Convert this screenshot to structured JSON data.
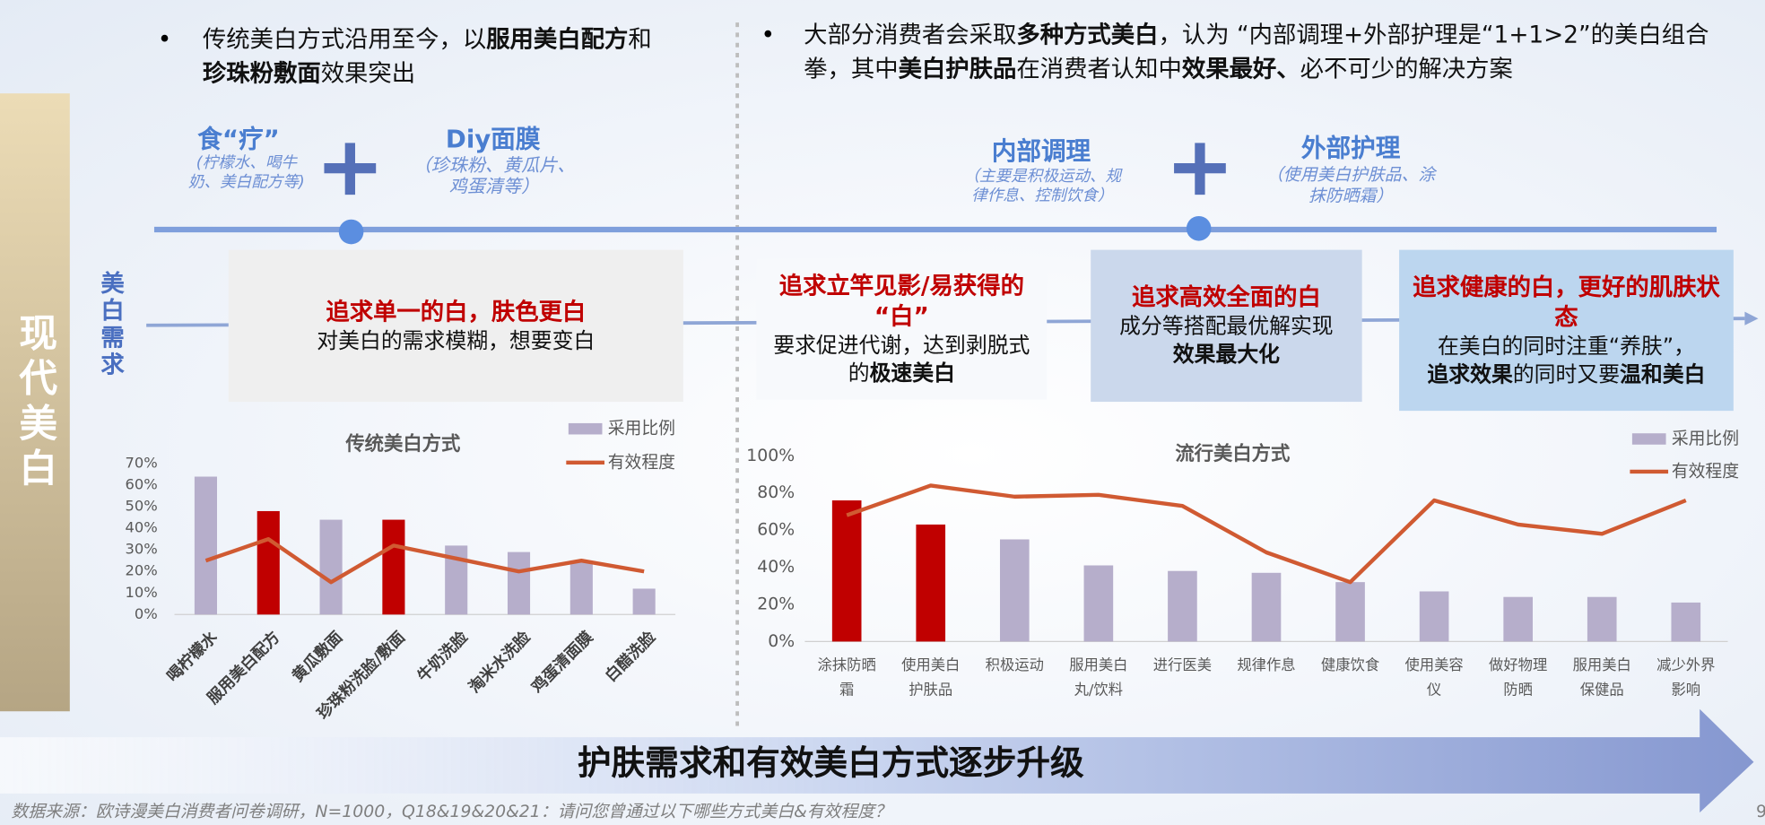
{
  "sidebar": "现代美白",
  "left_bullet": [
    "传统美白方式沿用至今，以",
    "服用美白配方",
    "和",
    "珍珠粉敷面",
    "效果突出"
  ],
  "right_bullet": [
    "大部分消费者会采取",
    "多种方式美白",
    "，认为 “内部调理+外部护理是“1+1>2”的美白组合拳，其中",
    "美白护肤品",
    "在消费者认知中",
    "效果最好、",
    "必不可少的解决方案"
  ],
  "timeline": [
    {
      "title": "食“疗”",
      "note": "(柠檬水、喝牛奶、美白配方等)"
    },
    {
      "title": "Diy面膜",
      "note": "（珍珠粉、黄瓜片、鸡蛋清等）"
    },
    {
      "title": "内部调理",
      "note": "（主要是积极运动、规律作息、控制饮食）"
    },
    {
      "title": "外部护理",
      "note": "（使用美白护肤品、涂抹防晒霜）"
    }
  ],
  "demand_label": "美白需求",
  "demands": [
    {
      "title": "追求单一的白，肤色更白",
      "body": [
        "对美白的需求模糊，想要变白"
      ]
    },
    {
      "title": "追求立竿见影/易获得的“白”",
      "body": [
        "要求促进代谢，达到剥脱式的",
        "极速美白"
      ]
    },
    {
      "title": "追求高效全面的白",
      "body": [
        "成分等搭配最优解实现",
        "效果最大化"
      ]
    },
    {
      "title": "追求健康的白，更好的肌肤状态",
      "body": [
        "在美白的同时注重“养肤”，",
        "追求效果",
        "的同时又要",
        "温和美白"
      ]
    }
  ],
  "chart_data": [
    {
      "type": "combo",
      "title": "传统美白方式",
      "categories": [
        "喝柠檬水",
        "服用美白配方",
        "黄瓜敷面",
        "珍珠粉洗脸/敷面",
        "牛奶洗脸",
        "淘米水洗脸",
        "鸡蛋清面膜",
        "白醋洗脸"
      ],
      "series": [
        {
          "name": "采用比例",
          "type": "bar",
          "color": "#b6aecb",
          "point_colors": [
            "#b6aecb",
            "#c00000",
            "#b6aecb",
            "#c00000",
            "#b6aecb",
            "#b6aecb",
            "#b6aecb",
            "#b6aecb"
          ],
          "values": [
            64,
            48,
            44,
            44,
            32,
            29,
            25,
            12
          ]
        },
        {
          "name": "有效程度",
          "type": "line",
          "color": "#d05a32",
          "values": [
            25,
            35,
            15,
            32,
            26,
            20,
            25,
            20
          ]
        }
      ],
      "ylim": [
        0,
        70
      ],
      "yticks": [
        {
          "value": 0,
          "label": "0%"
        },
        {
          "value": 10,
          "label": "10%"
        },
        {
          "value": 20,
          "label": "20%"
        },
        {
          "value": 30,
          "label": "30%"
        },
        {
          "value": 40,
          "label": "40%"
        },
        {
          "value": 50,
          "label": "50%"
        },
        {
          "value": 60,
          "label": "60%"
        },
        {
          "value": 70,
          "label": "70%"
        }
      ],
      "grid": false
    },
    {
      "type": "combo",
      "title": "流行美白方式",
      "categories": [
        "涂抹防晒霜",
        "使用美白护肤品",
        "积极运动",
        "服用美白丸/饮料",
        "进行医美",
        "规律作息",
        "健康饮食",
        "使用美容仪",
        "做好物理防晒",
        "服用美白保健品",
        "减少外界影响"
      ],
      "series": [
        {
          "name": "采用比例",
          "type": "bar",
          "color": "#b6aecb",
          "point_colors": [
            "#c00000",
            "#c00000",
            "#b6aecb",
            "#b6aecb",
            "#b6aecb",
            "#b6aecb",
            "#b6aecb",
            "#b6aecb",
            "#b6aecb",
            "#b6aecb",
            "#b6aecb"
          ],
          "values": [
            76,
            63,
            55,
            41,
            38,
            37,
            32,
            27,
            24,
            24,
            21
          ]
        },
        {
          "name": "有效程度",
          "type": "line",
          "color": "#d05a32",
          "values": [
            68,
            84,
            78,
            79,
            73,
            48,
            32,
            76,
            63,
            58,
            76
          ]
        }
      ],
      "ylim": [
        0,
        100
      ],
      "yticks": [
        {
          "value": 0,
          "label": "0%"
        },
        {
          "value": 20,
          "label": "20%"
        },
        {
          "value": 40,
          "label": "40%"
        },
        {
          "value": 60,
          "label": "60%"
        },
        {
          "value": 80,
          "label": "80%"
        },
        {
          "value": 100,
          "label": "100%"
        }
      ],
      "grid": false
    }
  ],
  "banner": "护肤需求和有效美白方式逐步升级",
  "source": "数据来源：欧诗漫美白消费者问卷调研，N=1000，Q18&19&20&21：请问您曾通过以下哪些方式美白&有效程度？",
  "page_number": "9"
}
